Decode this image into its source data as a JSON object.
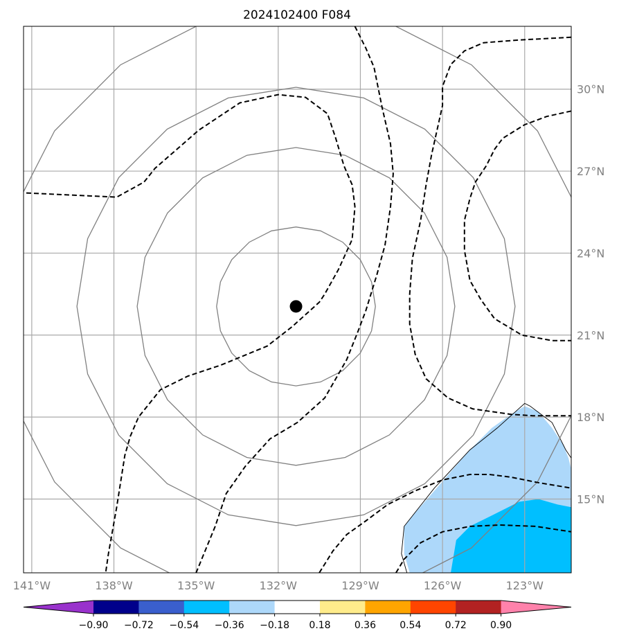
{
  "title": "2024102400 F084",
  "map": {
    "lon_range": [
      -141.3,
      -121.3
    ],
    "lat_range": [
      12.3,
      32.3
    ],
    "x_ticks": [
      {
        "value": -141,
        "label": "141°W"
      },
      {
        "value": -138,
        "label": "138°W"
      },
      {
        "value": -135,
        "label": "135°W"
      },
      {
        "value": -132,
        "label": "132°W"
      },
      {
        "value": -129,
        "label": "129°W"
      },
      {
        "value": -126,
        "label": "126°W"
      },
      {
        "value": -123,
        "label": "123°W"
      }
    ],
    "y_ticks": [
      {
        "value": 30,
        "label": "30°N"
      },
      {
        "value": 27,
        "label": "27°N"
      },
      {
        "value": 24,
        "label": "24°N"
      },
      {
        "value": 21,
        "label": "21°N"
      },
      {
        "value": 18,
        "label": "18°N"
      },
      {
        "value": 15,
        "label": "15°N"
      }
    ],
    "gridlines": true,
    "center_marker": {
      "lon": -131.35,
      "lat": 22.05,
      "color": "#000000"
    },
    "solid_contours": [
      {
        "name": "ring-1",
        "lon": -131.35,
        "lat": 22.05,
        "radius_deg": 2.9,
        "color": "#808080"
      },
      {
        "name": "ring-2",
        "lon": -131.35,
        "lat": 22.05,
        "radius_deg": 5.8,
        "color": "#808080"
      },
      {
        "name": "ring-3",
        "lon": -131.35,
        "lat": 22.05,
        "radius_deg": 8.0,
        "color": "#808080"
      },
      {
        "name": "ring-4",
        "lon": -131.35,
        "lat": 22.05,
        "radius_deg": 10.9,
        "color": "#808080"
      }
    ],
    "dashed_contours": [
      {
        "name": "dashed-west",
        "points": [
          [
            -141.2,
            26.2
          ],
          [
            -139.0,
            26.1
          ],
          [
            -137.9,
            26.05
          ],
          [
            -136.9,
            26.6
          ],
          [
            -136.5,
            27.1
          ],
          [
            -135.7,
            27.8
          ],
          [
            -134.9,
            28.5
          ],
          [
            -133.4,
            29.5
          ],
          [
            -132.0,
            29.8
          ],
          [
            -131.0,
            29.7
          ],
          [
            -130.2,
            29.1
          ],
          [
            -129.9,
            28.2
          ],
          [
            -129.6,
            27.2
          ],
          [
            -129.3,
            26.5
          ],
          [
            -129.2,
            25.7
          ],
          [
            -129.3,
            24.5
          ],
          [
            -129.8,
            23.4
          ],
          [
            -130.3,
            22.5
          ],
          [
            -130.5,
            22.2
          ],
          [
            -131.5,
            21.3
          ],
          [
            -132.4,
            20.6
          ],
          [
            -134.1,
            19.9
          ],
          [
            -135.3,
            19.5
          ],
          [
            -136.3,
            19.0
          ],
          [
            -137.1,
            18.0
          ],
          [
            -137.4,
            17.3
          ],
          [
            -137.6,
            16.6
          ],
          [
            -137.9,
            14.7
          ],
          [
            -138.2,
            13.0
          ],
          [
            -138.3,
            12.3
          ]
        ]
      },
      {
        "name": "dashed-central",
        "points": [
          [
            -129.2,
            32.3
          ],
          [
            -128.8,
            31.5
          ],
          [
            -128.5,
            30.8
          ],
          [
            -128.2,
            29.3
          ],
          [
            -127.9,
            28.0
          ],
          [
            -127.8,
            26.9
          ],
          [
            -127.9,
            25.7
          ],
          [
            -128.1,
            24.3
          ],
          [
            -128.4,
            23.2
          ],
          [
            -128.8,
            21.9
          ],
          [
            -129.1,
            21.1
          ],
          [
            -129.5,
            20.1
          ],
          [
            -129.9,
            19.4
          ],
          [
            -130.3,
            18.7
          ],
          [
            -131.3,
            17.8
          ],
          [
            -132.3,
            17.2
          ],
          [
            -133.2,
            16.2
          ],
          [
            -133.9,
            15.2
          ],
          [
            -134.3,
            14.0
          ],
          [
            -135.0,
            12.3
          ]
        ]
      },
      {
        "name": "dashed-east",
        "points": [
          [
            -121.3,
            31.9
          ],
          [
            -123.2,
            31.8
          ],
          [
            -124.5,
            31.7
          ],
          [
            -125.2,
            31.4
          ],
          [
            -125.7,
            30.9
          ],
          [
            -126.0,
            30.1
          ],
          [
            -126.0,
            29.4
          ],
          [
            -126.2,
            28.5
          ],
          [
            -126.4,
            27.6
          ],
          [
            -126.6,
            26.5
          ],
          [
            -126.8,
            25.2
          ],
          [
            -127.1,
            23.8
          ],
          [
            -127.2,
            22.5
          ],
          [
            -127.2,
            21.4
          ],
          [
            -127.0,
            20.3
          ],
          [
            -126.6,
            19.4
          ],
          [
            -125.8,
            18.7
          ],
          [
            -124.9,
            18.3
          ],
          [
            -123.5,
            18.1
          ],
          [
            -122.7,
            18.05
          ],
          [
            -121.3,
            18.05
          ]
        ]
      },
      {
        "name": "dashed-closed-east",
        "points": [
          [
            -121.3,
            29.2
          ],
          [
            -122.2,
            29.0
          ],
          [
            -123.0,
            28.7
          ],
          [
            -123.8,
            28.2
          ],
          [
            -124.1,
            27.8
          ],
          [
            -124.4,
            27.2
          ],
          [
            -124.8,
            26.6
          ],
          [
            -125.0,
            26.0
          ],
          [
            -125.2,
            25.2
          ],
          [
            -125.2,
            24.1
          ],
          [
            -125.0,
            23.0
          ],
          [
            -124.6,
            22.3
          ],
          [
            -124.1,
            21.6
          ],
          [
            -123.1,
            21.0
          ],
          [
            -122.0,
            20.8
          ],
          [
            -121.3,
            20.8
          ]
        ]
      },
      {
        "name": "dashed-south-1",
        "points": [
          [
            -127.7,
            12.3
          ],
          [
            -127.4,
            12.8
          ],
          [
            -126.8,
            13.4
          ],
          [
            -126.0,
            13.8
          ],
          [
            -125.0,
            14.0
          ],
          [
            -123.9,
            14.05
          ],
          [
            -122.6,
            14.0
          ],
          [
            -121.3,
            13.8
          ]
        ]
      },
      {
        "name": "dashed-south-2",
        "points": [
          [
            -130.5,
            12.3
          ],
          [
            -130.0,
            13.1
          ],
          [
            -129.5,
            13.7
          ],
          [
            -128.8,
            14.2
          ],
          [
            -128.0,
            14.8
          ],
          [
            -127.0,
            15.3
          ],
          [
            -126.0,
            15.7
          ],
          [
            -125.0,
            15.9
          ],
          [
            -124.3,
            15.9
          ],
          [
            -123.5,
            15.8
          ],
          [
            -122.5,
            15.6
          ],
          [
            -121.3,
            15.4
          ]
        ]
      }
    ],
    "fills": [
      {
        "name": "anomaly-light-blue",
        "color": "#add8fa",
        "points": [
          [
            -127.2,
            12.3
          ],
          [
            -127.4,
            13.0
          ],
          [
            -127.4,
            14.0
          ],
          [
            -127.0,
            14.5
          ],
          [
            -126.3,
            15.3
          ],
          [
            -125.7,
            16.0
          ],
          [
            -125.0,
            16.8
          ],
          [
            -124.2,
            17.6
          ],
          [
            -123.5,
            18.1
          ],
          [
            -123.0,
            18.4
          ],
          [
            -122.5,
            18.2
          ],
          [
            -122.0,
            17.6
          ],
          [
            -121.6,
            17.0
          ],
          [
            -121.4,
            16.5
          ],
          [
            -121.3,
            16.1
          ],
          [
            -121.3,
            12.3
          ]
        ]
      },
      {
        "name": "anomaly-blue",
        "color": "#00bfff",
        "points": [
          [
            -125.7,
            12.3
          ],
          [
            -125.5,
            13.5
          ],
          [
            -125.0,
            14.0
          ],
          [
            -124.2,
            14.4
          ],
          [
            -123.2,
            14.9
          ],
          [
            -122.5,
            15.0
          ],
          [
            -121.8,
            14.8
          ],
          [
            -121.3,
            14.7
          ],
          [
            -121.3,
            12.3
          ]
        ]
      }
    ],
    "coastline": [
      [
        -127.3,
        12.3
      ],
      [
        -127.5,
        13.0
      ],
      [
        -127.4,
        14.0
      ],
      [
        -126.3,
        15.4
      ],
      [
        -125.0,
        16.8
      ],
      [
        -124.0,
        17.6
      ],
      [
        -123.0,
        18.5
      ],
      [
        -122.8,
        18.4
      ],
      [
        -122.0,
        17.8
      ],
      [
        -121.7,
        17.2
      ],
      [
        -121.5,
        16.8
      ],
      [
        -121.3,
        16.5
      ]
    ]
  },
  "colorbar": {
    "colors": [
      "#9932cc",
      "#00008b",
      "#3a5fcd",
      "#00bfff",
      "#add8fa",
      "#ffffff",
      "#ffec8b",
      "#ffa500",
      "#ff4500",
      "#b22222",
      "#ff82ab"
    ],
    "tick_labels": [
      "−0.90",
      "−0.72",
      "−0.54",
      "−0.36",
      "−0.18",
      "0.18",
      "0.36",
      "0.54",
      "0.72",
      "0.90"
    ]
  }
}
